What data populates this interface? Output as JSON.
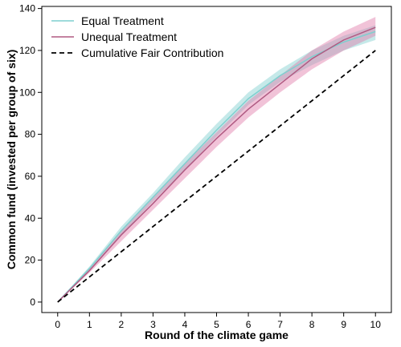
{
  "chart_data": {
    "type": "line",
    "xlabel": "Round of the climate game",
    "ylabel": "Common fund (invested per group of six)",
    "xlim": [
      -0.5,
      10.5
    ],
    "ylim": [
      -5,
      141
    ],
    "xticks": [
      0,
      1,
      2,
      3,
      4,
      5,
      6,
      7,
      8,
      9,
      10
    ],
    "yticks": [
      0,
      20,
      40,
      60,
      80,
      100,
      120,
      140
    ],
    "grid": false,
    "legend_position": "top-left",
    "x": [
      0,
      1,
      2,
      3,
      4,
      5,
      6,
      7,
      8,
      9,
      10
    ],
    "series": [
      {
        "name": "Equal Treatment",
        "color": "#7fcfcf",
        "values": [
          0,
          16,
          34,
          50,
          66,
          82,
          97,
          108,
          117,
          124,
          129
        ],
        "lower": [
          0,
          15,
          32,
          48,
          63,
          79,
          94,
          105,
          113,
          120,
          125
        ],
        "upper": [
          0,
          17,
          36,
          52,
          69,
          85,
          100,
          111,
          120,
          127,
          132
        ]
      },
      {
        "name": "Unequal Treatment",
        "color": "#b05a82",
        "band_color": "#e07aa8",
        "values": [
          0,
          15,
          32,
          47,
          63,
          78,
          92,
          104,
          116,
          125,
          131
        ],
        "lower": [
          0,
          14,
          29,
          44,
          59,
          74,
          88,
          100,
          111,
          120,
          127
        ],
        "upper": [
          0,
          16,
          34,
          50,
          66,
          81,
          96,
          108,
          120,
          129,
          136
        ]
      },
      {
        "name": "Cumulative Fair Contribution",
        "color": "#000000",
        "dashed": true,
        "values": [
          0,
          12,
          24,
          36,
          48,
          60,
          72,
          84,
          96,
          108,
          120
        ]
      }
    ]
  }
}
